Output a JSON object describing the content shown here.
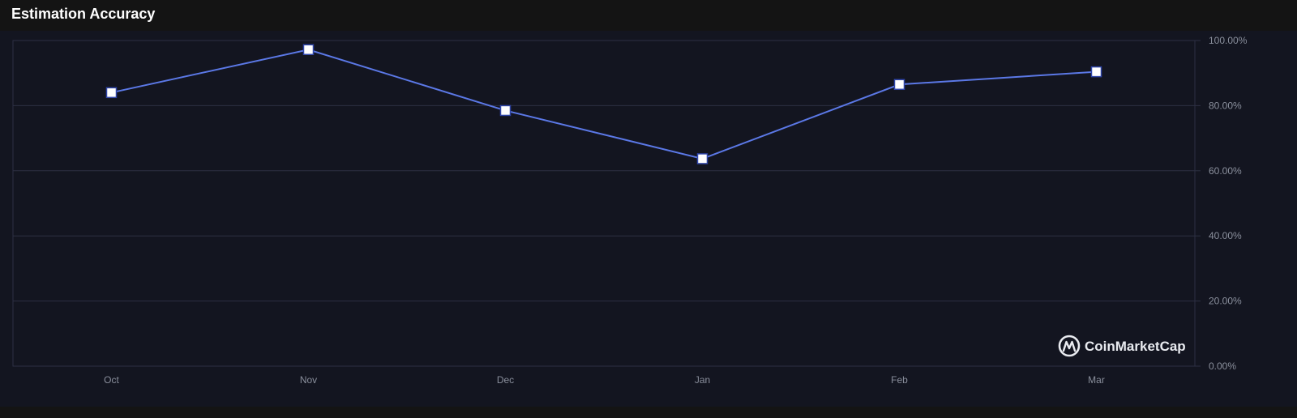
{
  "header": {
    "title": "Estimation Accuracy"
  },
  "watermark": {
    "text": "CoinMarketCap",
    "icon": "coinmarketcap-logo-icon"
  },
  "colors": {
    "background": "#141414",
    "plot_background": "#131520",
    "line": "#5b78e6",
    "marker_fill": "#ffffff",
    "grid": "#2d3043"
  },
  "chart_data": {
    "type": "line",
    "title": "Estimation Accuracy",
    "categories": [
      "Oct",
      "Nov",
      "Dec",
      "Jan",
      "Feb",
      "Mar"
    ],
    "series": [
      {
        "values": [
          84.0,
          97.2,
          78.5,
          63.7,
          86.5,
          90.4
        ]
      }
    ],
    "ylim": [
      0,
      100
    ],
    "yticks": [
      0,
      20,
      40,
      60,
      80,
      100
    ],
    "ytick_labels": [
      "0.00%",
      "20.00%",
      "40.00%",
      "60.00%",
      "80.00%",
      "100.00%"
    ],
    "y_axis_side": "right",
    "grid": true,
    "marker": "square",
    "legend": "none"
  }
}
